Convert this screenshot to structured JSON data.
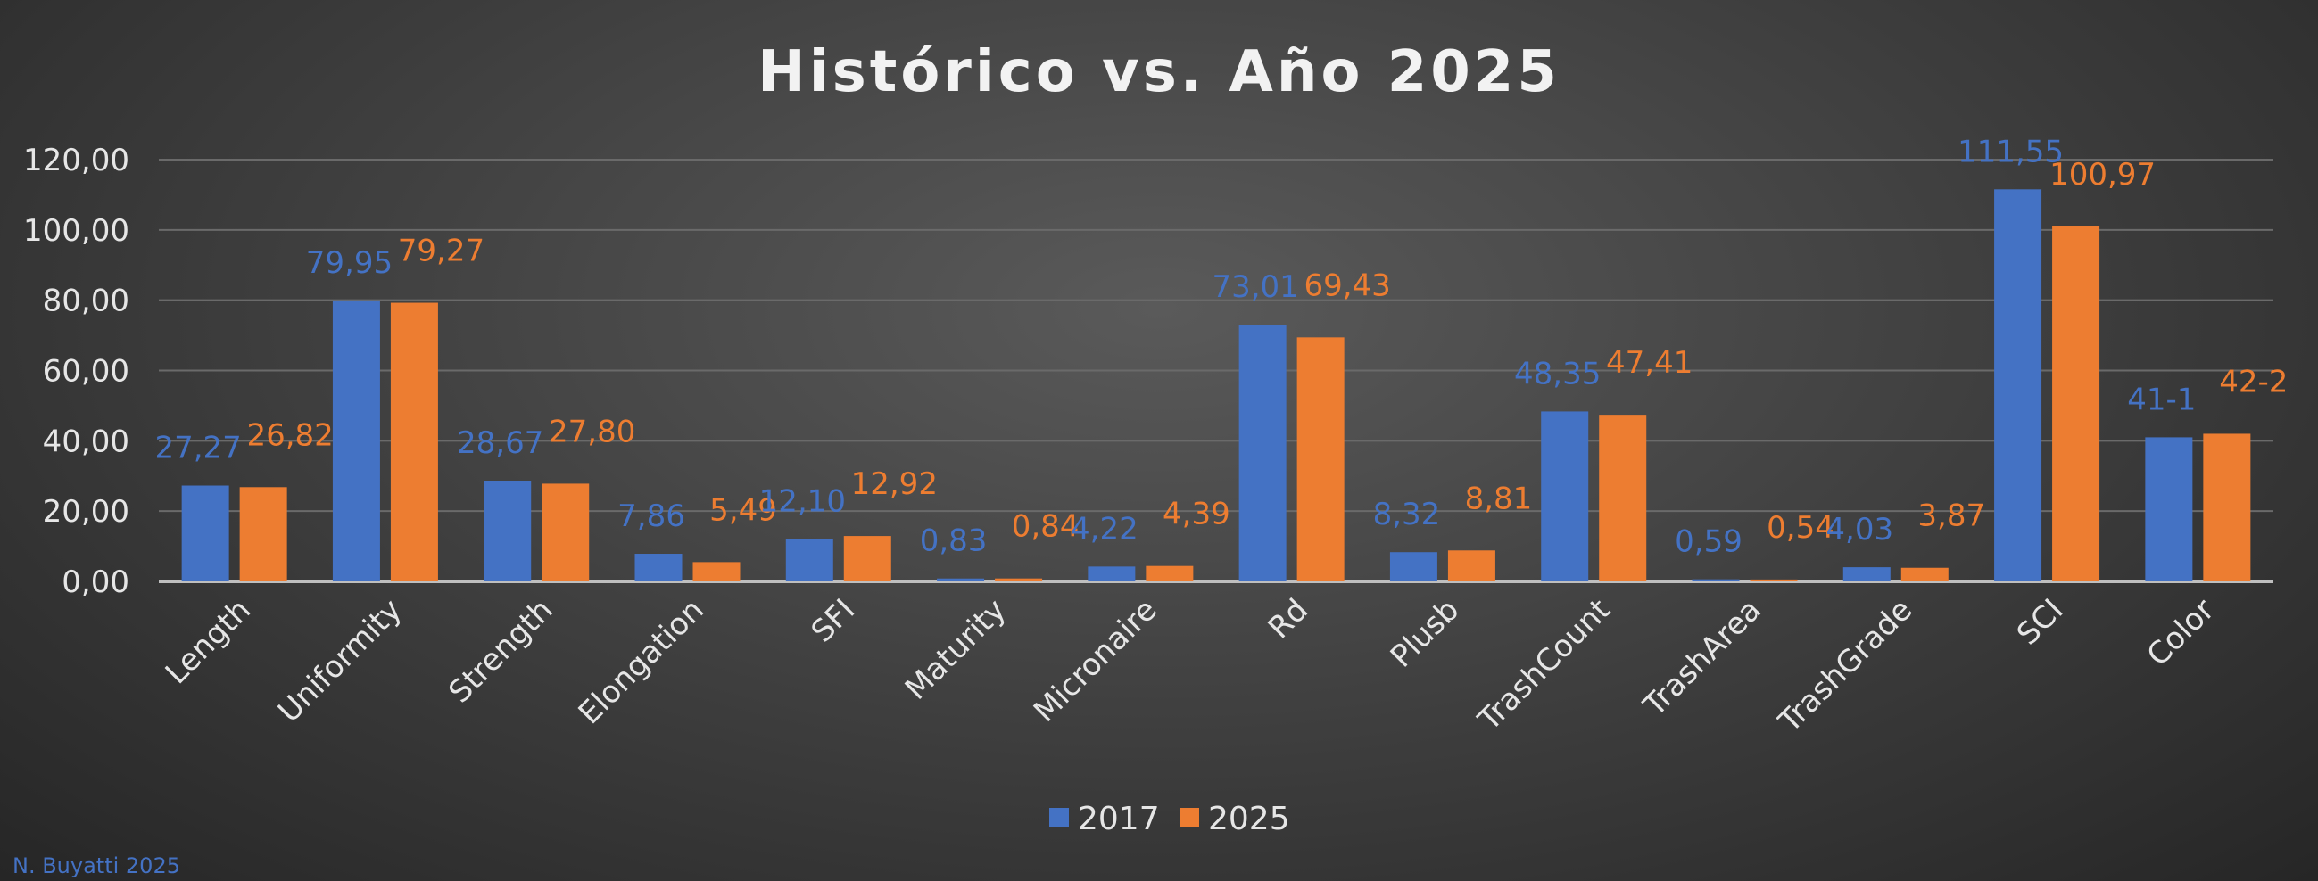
{
  "chart_data": {
    "type": "bar",
    "title": "Histórico  vs. Año 2025",
    "categories": [
      "Length",
      "Uniformity",
      "Strength",
      "Elongation",
      "SFI",
      "Maturity",
      "Micronaire",
      "Rd",
      "Plusb",
      "TrashCount",
      "TrashArea",
      "TrashGrade",
      "SCI",
      "Color"
    ],
    "series": [
      {
        "name": "2017",
        "color": "#4472c4",
        "values": [
          27.27,
          79.95,
          28.67,
          7.86,
          12.1,
          0.83,
          4.22,
          73.01,
          8.32,
          48.35,
          0.59,
          4.03,
          111.55,
          41
        ],
        "labels": [
          "27,27",
          "79,95",
          "28,67",
          "7,86",
          "12,10",
          "0,83",
          "4,22",
          "73,01",
          "8,32",
          "48,35",
          "0,59",
          "4,03",
          "111,55",
          "41-1"
        ]
      },
      {
        "name": "2025",
        "color": "#ed7d31",
        "values": [
          26.82,
          79.27,
          27.8,
          5.49,
          12.92,
          0.84,
          4.39,
          69.43,
          8.81,
          47.41,
          0.54,
          3.87,
          100.97,
          42
        ],
        "labels": [
          "26,82",
          "79,27",
          "27,80",
          "5,49",
          "12,92",
          "0,84",
          "4,39",
          "69,43",
          "8,81",
          "47,41",
          "0,54",
          "3,87",
          "100,97",
          "42-2"
        ]
      }
    ],
    "ylim": [
      0,
      120
    ],
    "yticks": [
      "0,00",
      "20,00",
      "40,00",
      "60,00",
      "80,00",
      "100,00",
      "120,00"
    ],
    "grid": true,
    "legend_position": "bottom"
  },
  "footer": {
    "text": "N. Buyatti 2025",
    "color": "#4472c4"
  }
}
